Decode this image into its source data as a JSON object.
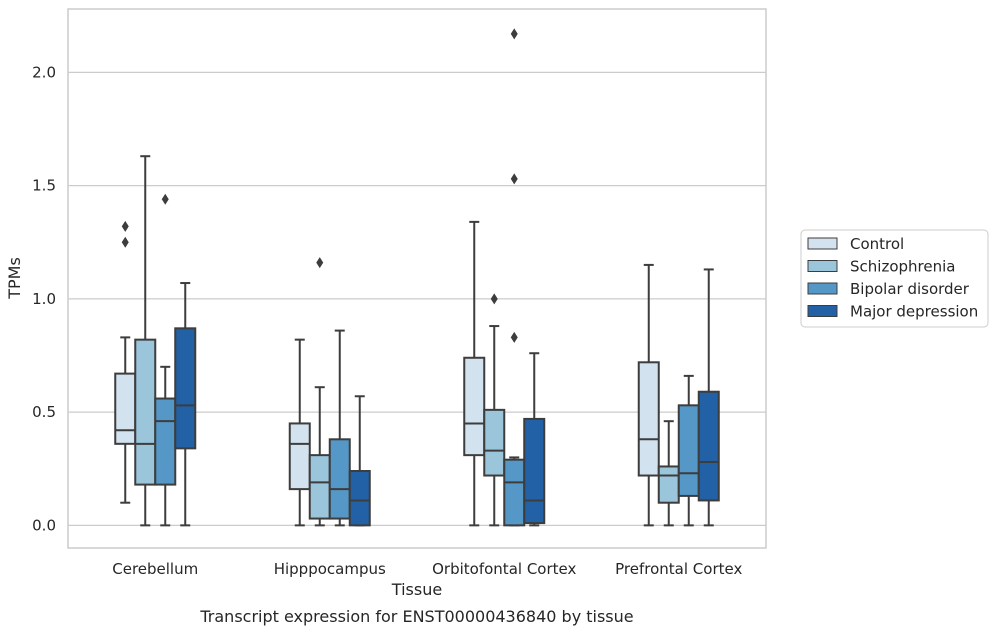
{
  "chart_data": {
    "type": "boxplot",
    "xlabel": "Tissue",
    "ylabel": "TPMs",
    "caption": "Transcript expression for ENST00000436840 by tissue",
    "ylim": [
      -0.1,
      2.28
    ],
    "yticks": [
      "0.0",
      "0.5",
      "1.0",
      "1.5",
      "2.0"
    ],
    "grid": "horizontal",
    "legend_position": "right",
    "categories": [
      "Cerebellum",
      "Hipppocampus",
      "Orbitofontal Cortex",
      "Prefrontal Cortex"
    ],
    "series": [
      {
        "name": "Control",
        "color": "#d3e2ef",
        "boxes": [
          {
            "whislo": 0.1,
            "q1": 0.36,
            "med": 0.42,
            "q3": 0.67,
            "whishi": 0.83,
            "fliers": [
              1.25,
              1.32
            ]
          },
          {
            "whislo": 0.0,
            "q1": 0.16,
            "med": 0.36,
            "q3": 0.45,
            "whishi": 0.82,
            "fliers": []
          },
          {
            "whislo": 0.0,
            "q1": 0.31,
            "med": 0.45,
            "q3": 0.74,
            "whishi": 1.34,
            "fliers": []
          },
          {
            "whislo": 0.0,
            "q1": 0.22,
            "med": 0.38,
            "q3": 0.72,
            "whishi": 1.15,
            "fliers": []
          }
        ]
      },
      {
        "name": "Schizophrenia",
        "color": "#9ac5db",
        "boxes": [
          {
            "whislo": 0.0,
            "q1": 0.18,
            "med": 0.36,
            "q3": 0.82,
            "whishi": 1.63,
            "fliers": []
          },
          {
            "whislo": 0.0,
            "q1": 0.03,
            "med": 0.19,
            "q3": 0.31,
            "whishi": 0.61,
            "fliers": [
              1.16
            ]
          },
          {
            "whislo": 0.0,
            "q1": 0.22,
            "med": 0.33,
            "q3": 0.51,
            "whishi": 0.88,
            "fliers": [
              1.0
            ]
          },
          {
            "whislo": 0.0,
            "q1": 0.1,
            "med": 0.22,
            "q3": 0.26,
            "whishi": 0.46,
            "fliers": []
          }
        ]
      },
      {
        "name": "Bipolar disorder",
        "color": "#5597c6",
        "boxes": [
          {
            "whislo": 0.0,
            "q1": 0.18,
            "med": 0.46,
            "q3": 0.56,
            "whishi": 0.7,
            "fliers": [
              1.44
            ]
          },
          {
            "whislo": 0.0,
            "q1": 0.03,
            "med": 0.16,
            "q3": 0.38,
            "whishi": 0.86,
            "fliers": []
          },
          {
            "whislo": 0.0,
            "q1": 0.0,
            "med": 0.19,
            "q3": 0.29,
            "whishi": 0.3,
            "fliers": [
              0.83,
              1.53,
              2.17
            ]
          },
          {
            "whislo": 0.0,
            "q1": 0.13,
            "med": 0.23,
            "q3": 0.53,
            "whishi": 0.66,
            "fliers": []
          }
        ]
      },
      {
        "name": "Major depression",
        "color": "#2261a5",
        "boxes": [
          {
            "whislo": 0.0,
            "q1": 0.34,
            "med": 0.53,
            "q3": 0.87,
            "whishi": 1.07,
            "fliers": []
          },
          {
            "whislo": 0.0,
            "q1": 0.0,
            "med": 0.11,
            "q3": 0.24,
            "whishi": 0.57,
            "fliers": []
          },
          {
            "whislo": 0.0,
            "q1": 0.01,
            "med": 0.11,
            "q3": 0.47,
            "whishi": 0.76,
            "fliers": []
          },
          {
            "whislo": 0.0,
            "q1": 0.11,
            "med": 0.28,
            "q3": 0.59,
            "whishi": 1.13,
            "fliers": []
          }
        ]
      }
    ]
  }
}
